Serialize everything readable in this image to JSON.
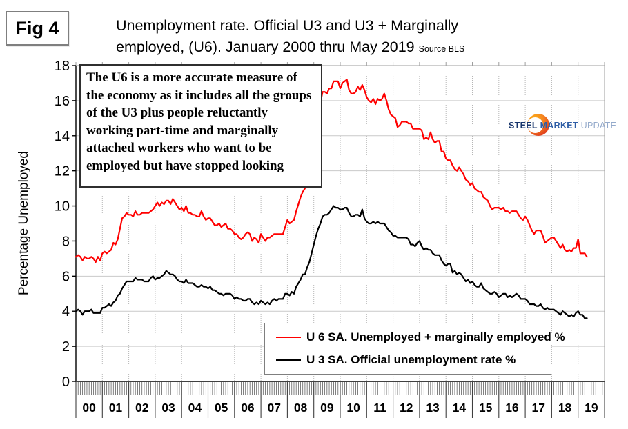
{
  "figure_label": "Fig 4",
  "title": {
    "line1": "Unemployment rate. Official U3 and U3 + Marginally",
    "line2": "employed, (U6). January 2000 thru May 2019",
    "source": "Source BLS"
  },
  "annotation": {
    "lines": [
      "The U6 is a more accurate measure of",
      "the economy as it includes all the groups",
      "of the U3 plus people reluctantly",
      "working part-time and marginally",
      "attached workers who want to be",
      "employed but have stopped looking"
    ]
  },
  "logo": {
    "steel": "STEEL",
    "market": "MARKET",
    "update": "UPDATE"
  },
  "colors": {
    "u6_red": "#ff0000",
    "u3_black": "#000000",
    "gridline": "#c9c9c9",
    "dotted_gridline": "#b5b5b5",
    "plot_border": "#9e9e9e",
    "axis": "#000000",
    "logo_orange": "#f58220",
    "logo_navy": "#17356b"
  },
  "chart_data": {
    "type": "line",
    "title": "Unemployment rate. Official U3 and U3 + Marginally employed, (U6). January 2000 thru May 2019",
    "xlabel": "",
    "ylabel": "Percentage Unemployed",
    "ylim": [
      0,
      18
    ],
    "yticks": [
      0,
      2,
      4,
      6,
      8,
      10,
      12,
      14,
      16,
      18
    ],
    "grid": true,
    "legend_position": "bottom-center-inside",
    "x_frequency": "monthly",
    "x_start_label": "January 2000",
    "x_end_label": "May 2019",
    "x_year_labels": [
      "00",
      "01",
      "02",
      "03",
      "04",
      "05",
      "06",
      "07",
      "08",
      "09",
      "10",
      "11",
      "12",
      "13",
      "14",
      "15",
      "16",
      "17",
      "18",
      "19"
    ],
    "series": [
      {
        "name": "U 6 SA. Unemployed + marginally employed %",
        "color": "#ff0000",
        "values": [
          7.1,
          7.2,
          7.1,
          6.9,
          7.1,
          7.0,
          7.0,
          7.1,
          7.0,
          6.8,
          7.1,
          6.9,
          7.3,
          7.4,
          7.3,
          7.4,
          7.5,
          7.9,
          7.8,
          8.1,
          8.7,
          9.3,
          9.4,
          9.6,
          9.5,
          9.5,
          9.4,
          9.7,
          9.5,
          9.5,
          9.6,
          9.6,
          9.6,
          9.6,
          9.7,
          9.8,
          10.0,
          10.2,
          10.0,
          10.2,
          10.1,
          10.3,
          10.3,
          10.1,
          10.4,
          10.2,
          10.0,
          9.8,
          9.9,
          9.7,
          10.0,
          9.6,
          9.6,
          9.5,
          9.5,
          9.4,
          9.4,
          9.7,
          9.4,
          9.2,
          9.3,
          9.3,
          9.1,
          8.9,
          8.9,
          9.0,
          8.8,
          8.9,
          9.0,
          8.7,
          8.7,
          8.6,
          8.4,
          8.4,
          8.2,
          8.1,
          8.2,
          8.4,
          8.5,
          8.4,
          8.0,
          8.2,
          8.1,
          7.9,
          8.4,
          8.2,
          8.0,
          8.2,
          8.2,
          8.3,
          8.4,
          8.4,
          8.4,
          8.4,
          8.4,
          8.8,
          9.2,
          9.0,
          9.1,
          9.2,
          9.7,
          10.1,
          10.5,
          10.8,
          11.0,
          11.8,
          12.6,
          13.6,
          14.2,
          15.2,
          15.8,
          15.9,
          16.5,
          16.5,
          16.4,
          16.7,
          16.7,
          17.1,
          17.1,
          17.1,
          16.7,
          17.0,
          17.1,
          17.2,
          16.6,
          16.4,
          16.4,
          16.5,
          16.8,
          16.6,
          16.9,
          16.6,
          16.2,
          16.0,
          15.9,
          16.1,
          15.8,
          16.1,
          16.0,
          16.1,
          16.4,
          16.0,
          15.5,
          15.2,
          15.1,
          15.0,
          14.5,
          14.6,
          14.8,
          14.8,
          14.8,
          14.7,
          14.7,
          14.4,
          14.4,
          14.4,
          14.4,
          14.3,
          13.8,
          13.9,
          13.8,
          14.2,
          13.8,
          13.6,
          13.7,
          13.7,
          13.1,
          13.1,
          12.7,
          12.6,
          12.6,
          12.3,
          12.1,
          12.0,
          12.2,
          12.0,
          11.8,
          11.5,
          11.4,
          11.2,
          11.3,
          11.0,
          10.9,
          10.8,
          10.8,
          10.5,
          10.4,
          10.3,
          10.0,
          9.8,
          9.9,
          9.9,
          9.9,
          9.8,
          9.9,
          9.7,
          9.7,
          9.6,
          9.7,
          9.7,
          9.7,
          9.5,
          9.3,
          9.2,
          9.4,
          9.2,
          8.9,
          8.6,
          8.4,
          8.6,
          8.6,
          8.6,
          8.3,
          7.9,
          8.0,
          8.1,
          8.2,
          8.2,
          8.0,
          7.8,
          7.6,
          7.8,
          7.5,
          7.4,
          7.5,
          7.4,
          7.6,
          7.6,
          8.1,
          7.3,
          7.3,
          7.3,
          7.1
        ]
      },
      {
        "name": "U 3 SA. Official unemployment rate %",
        "color": "#000000",
        "values": [
          4.0,
          4.1,
          4.0,
          3.8,
          4.0,
          4.0,
          4.0,
          4.1,
          3.9,
          3.9,
          3.9,
          3.9,
          4.2,
          4.2,
          4.3,
          4.4,
          4.3,
          4.5,
          4.6,
          4.9,
          5.0,
          5.3,
          5.5,
          5.7,
          5.7,
          5.7,
          5.7,
          5.9,
          5.8,
          5.8,
          5.8,
          5.7,
          5.7,
          5.7,
          5.9,
          6.0,
          5.8,
          5.9,
          5.9,
          6.0,
          6.1,
          6.3,
          6.2,
          6.1,
          6.1,
          6.0,
          5.8,
          5.7,
          5.7,
          5.6,
          5.8,
          5.6,
          5.6,
          5.6,
          5.5,
          5.4,
          5.4,
          5.5,
          5.4,
          5.4,
          5.3,
          5.4,
          5.2,
          5.2,
          5.1,
          5.0,
          5.0,
          4.9,
          5.0,
          5.0,
          5.0,
          4.9,
          4.7,
          4.8,
          4.7,
          4.7,
          4.6,
          4.6,
          4.7,
          4.7,
          4.5,
          4.4,
          4.5,
          4.4,
          4.6,
          4.5,
          4.4,
          4.5,
          4.4,
          4.6,
          4.7,
          4.6,
          4.7,
          4.7,
          4.7,
          5.0,
          5.0,
          4.9,
          5.1,
          5.0,
          5.4,
          5.6,
          5.8,
          6.1,
          6.1,
          6.5,
          6.8,
          7.3,
          7.8,
          8.3,
          8.7,
          9.0,
          9.4,
          9.5,
          9.5,
          9.6,
          9.8,
          10.0,
          9.9,
          9.9,
          9.8,
          9.8,
          9.9,
          9.9,
          9.6,
          9.4,
          9.4,
          9.5,
          9.5,
          9.4,
          9.8,
          9.3,
          9.1,
          9.0,
          9.0,
          9.1,
          9.0,
          9.1,
          9.0,
          9.0,
          9.0,
          8.8,
          8.6,
          8.5,
          8.3,
          8.3,
          8.2,
          8.2,
          8.2,
          8.2,
          8.2,
          8.1,
          7.8,
          7.8,
          7.7,
          7.9,
          8.0,
          7.7,
          7.5,
          7.6,
          7.5,
          7.5,
          7.3,
          7.2,
          7.2,
          7.2,
          6.9,
          6.7,
          6.6,
          6.7,
          6.7,
          6.2,
          6.3,
          6.1,
          6.2,
          6.1,
          5.9,
          5.7,
          5.8,
          5.6,
          5.7,
          5.5,
          5.4,
          5.4,
          5.6,
          5.3,
          5.2,
          5.1,
          5.0,
          5.0,
          5.1,
          5.0,
          4.8,
          4.9,
          5.0,
          5.0,
          4.8,
          4.9,
          4.8,
          4.9,
          5.0,
          4.9,
          4.7,
          4.7,
          4.7,
          4.6,
          4.4,
          4.4,
          4.4,
          4.3,
          4.3,
          4.4,
          4.2,
          4.1,
          4.2,
          4.1,
          4.1,
          4.1,
          4.0,
          3.9,
          3.8,
          4.0,
          3.9,
          3.8,
          3.7,
          3.8,
          3.7,
          3.9,
          4.0,
          3.8,
          3.8,
          3.6,
          3.6
        ]
      }
    ]
  }
}
